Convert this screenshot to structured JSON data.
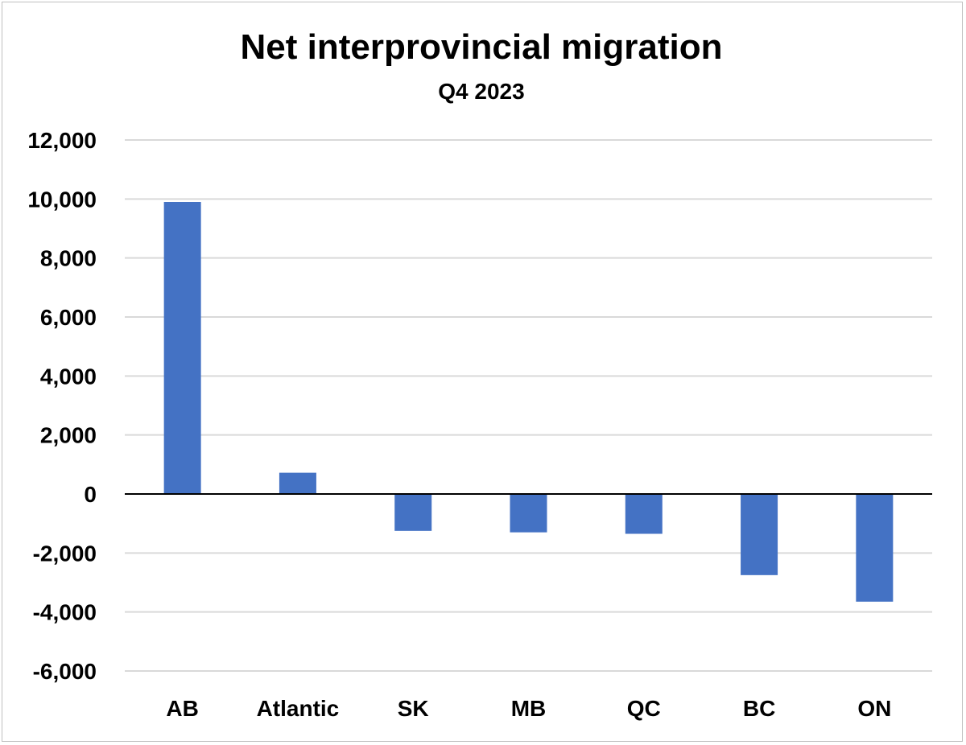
{
  "chart_data": {
    "type": "bar",
    "title": "Net interprovincial migration",
    "subtitle": "Q4 2023",
    "xlabel": "",
    "ylabel": "",
    "categories": [
      "AB",
      "Atlantic",
      "SK",
      "MB",
      "QC",
      "BC",
      "ON"
    ],
    "series": [
      {
        "values": [
          9900,
          720,
          -1250,
          -1300,
          -1350,
          -2750,
          -3650
        ],
        "color": "#4472C4"
      }
    ],
    "ylim": [
      -6000,
      12000
    ],
    "yticks": [
      12000,
      10000,
      8000,
      6000,
      4000,
      2000,
      0,
      -2000,
      -4000,
      -6000
    ],
    "ytick_labels": [
      "12,000",
      "10,000",
      "8,000",
      "6,000",
      "4,000",
      "2,000",
      "0",
      "-2,000",
      "-4,000",
      "-6,000"
    ],
    "grid": true,
    "legend": "none"
  }
}
